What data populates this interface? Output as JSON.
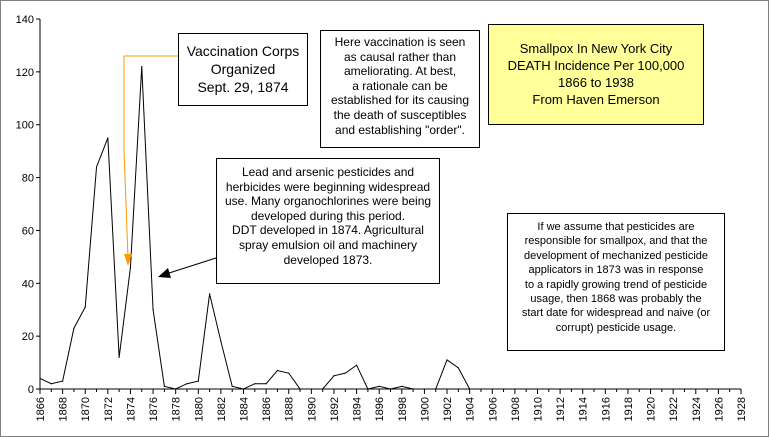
{
  "chart_data": {
    "type": "line",
    "x": [
      1866,
      1867,
      1868,
      1869,
      1870,
      1871,
      1872,
      1873,
      1874,
      1875,
      1876,
      1877,
      1878,
      1879,
      1880,
      1881,
      1882,
      1883,
      1884,
      1885,
      1886,
      1887,
      1888,
      1889,
      1890,
      1891,
      1892,
      1893,
      1894,
      1895,
      1896,
      1897,
      1898,
      1899,
      1900,
      1901,
      1902,
      1903,
      1904
    ],
    "series": [
      {
        "values": [
          4,
          2,
          3,
          23,
          31,
          84,
          95,
          12,
          46,
          122,
          30,
          1,
          0,
          2,
          3,
          36,
          18,
          1,
          0,
          2,
          2,
          7,
          6,
          0,
          0,
          0,
          5,
          6,
          9,
          0,
          1,
          0,
          1,
          0,
          0,
          0,
          11,
          8,
          0
        ]
      }
    ],
    "xlim": [
      1866,
      1928
    ],
    "ylim": [
      0,
      140
    ],
    "yticks": [
      0,
      20,
      40,
      60,
      80,
      100,
      120,
      140
    ],
    "xticks": [
      "1866",
      "1868",
      "1870",
      "1872",
      "1874",
      "1876",
      "1878",
      "1880",
      "1882",
      "1884",
      "1886",
      "1888",
      "1890",
      "1892",
      "1894",
      "1896",
      "1898",
      "1900",
      "1902",
      "1904",
      "1906",
      "1908",
      "1910",
      "1912",
      "1914",
      "1916",
      "1918",
      "1920",
      "1922",
      "1924",
      "1926",
      "1928"
    ],
    "line_color": "#000000",
    "grid": false,
    "title_lines": [
      "Smallpox In New York City",
      "DEATH Incidence Per 100,000",
      "1866 to 1938",
      "From Haven Emerson"
    ],
    "title_box_color": "#ffff99",
    "annotations": {
      "corps": {
        "lines": [
          "Vaccination Corps",
          "Organized",
          "Sept. 29, 1874"
        ],
        "arrow_color": "#ff9900"
      },
      "vaccination": {
        "lines": [
          "Here vaccination is seen",
          "as causal rather than",
          "ameliorating.  At best,",
          "a rationale can be",
          "established for its causing",
          "the death of susceptibles",
          "and establishing \"order\"."
        ]
      },
      "pesticides": {
        "lines": [
          "Lead and arsenic pesticides and",
          "herbicides were beginning widespread",
          "use. Many organochlorines were being",
          "developed during this period.",
          "DDT developed in 1874.  Agricultural",
          "spray emulsion oil and machinery",
          "developed 1873."
        ],
        "arrow_color": "#000000"
      },
      "assumption": {
        "lines": [
          "If we assume that pesticides are",
          "responsible for smallpox, and that the",
          "development of mechanized pesticide",
          "applicators in 1873 was in response",
          "to a rapidly growing trend of pesticide",
          "usage, then 1868 was probably the",
          "start date for widespread and naive (or",
          "corrupt) pesticide usage."
        ]
      }
    }
  }
}
